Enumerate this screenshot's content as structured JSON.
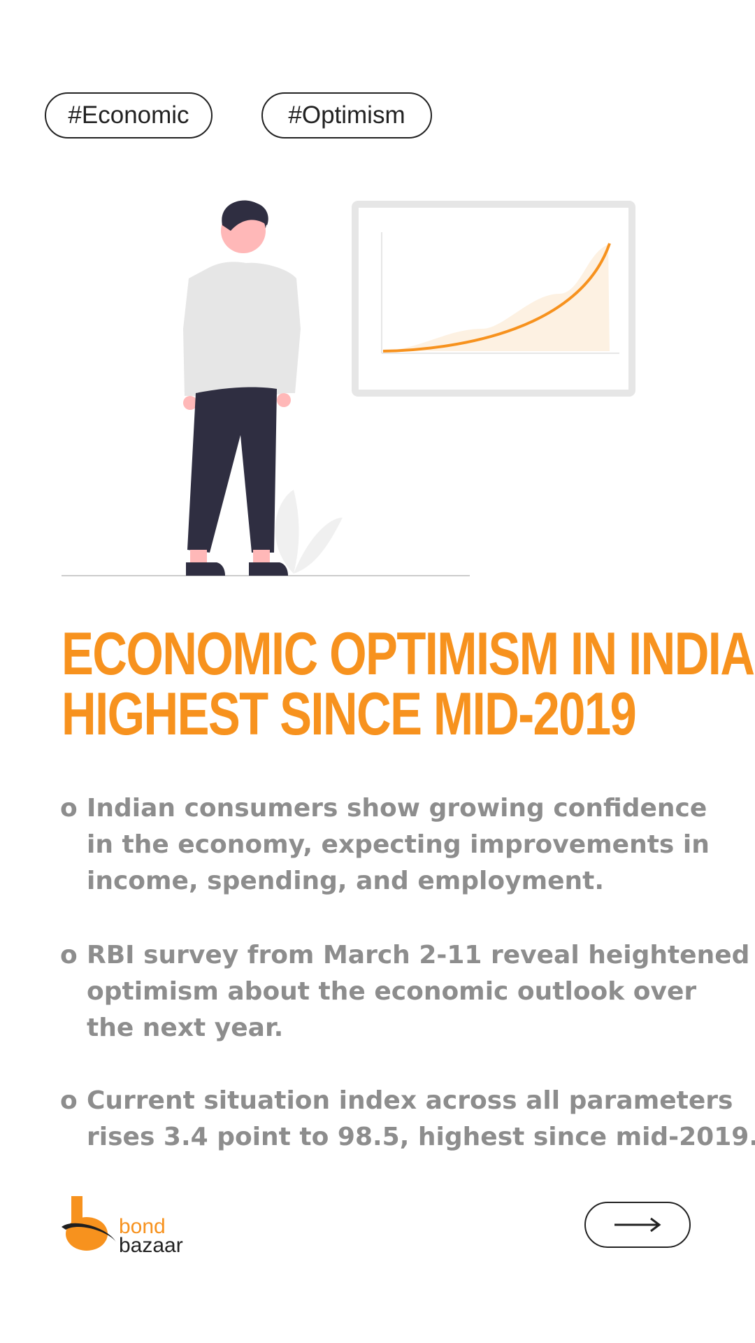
{
  "tags": [
    "#Economic",
    "#Optimism"
  ],
  "headline": [
    "ECONOMIC OPTIMISM IN INDIA",
    "HIGHEST SINCE MID-2019"
  ],
  "bullets": [
    {
      "mark": "o",
      "lines": [
        "Indian consumers show growing confidence",
        "in the economy, expecting improvements in",
        "income, spending, and employment."
      ]
    },
    {
      "mark": "o",
      "lines": [
        "RBI survey from March 2-11 reveal heightened",
        "optimism about the economic outlook over",
        "the next year."
      ]
    },
    {
      "mark": "o",
      "lines": [
        "Current situation index across all parameters",
        "rises 3.4 point to 98.5, highest since mid-2019."
      ]
    }
  ],
  "logo": {
    "word1": "bond",
    "word2": "bazaar"
  },
  "colors": {
    "accent": "#f7921e",
    "text": "#8d8d8d",
    "dark": "#222222"
  },
  "icons": {
    "next": "arrow-right-icon"
  }
}
